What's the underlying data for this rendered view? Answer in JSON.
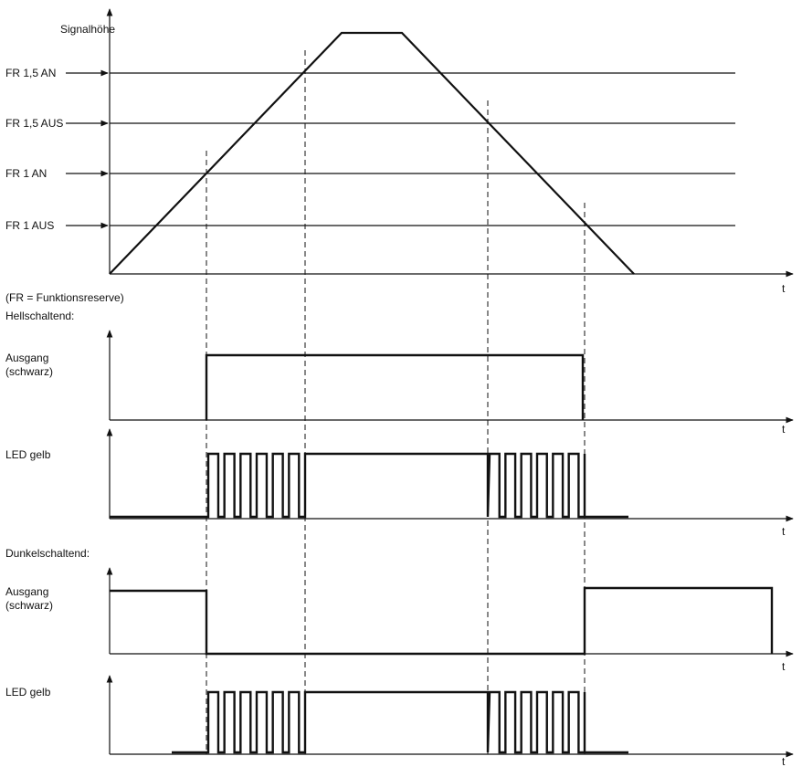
{
  "top": {
    "y_label": "Signalhöhe",
    "t_label": "t",
    "levels": [
      {
        "label": "FR 1,5 AN"
      },
      {
        "label": "FR 1,5 AUS"
      },
      {
        "label": "FR 1 AN"
      },
      {
        "label": "FR 1 AUS"
      }
    ],
    "footnote": "(FR = Funktionsreserve)"
  },
  "sections": {
    "hell": "Hellschaltend:",
    "dunkel": "Dunkelschaltend:"
  },
  "panels": [
    {
      "label_line1": "Ausgang",
      "label_line2": "(schwarz)",
      "t_label": "t"
    },
    {
      "label_line1": "LED gelb",
      "label_line2": "",
      "t_label": "t"
    },
    {
      "label_line1": "Ausgang",
      "label_line2": "(schwarz)",
      "t_label": "t"
    },
    {
      "label_line1": "LED gelb",
      "label_line2": "",
      "t_label": "t"
    }
  ]
}
